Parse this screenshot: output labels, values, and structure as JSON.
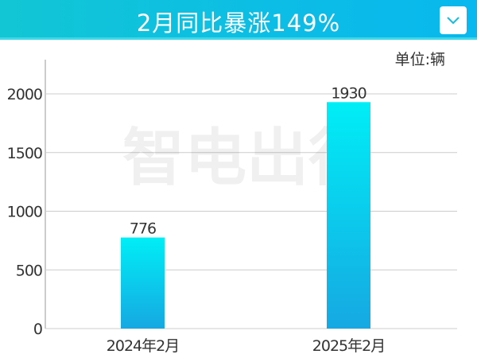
{
  "header": {
    "title": "2月同比暴涨149%",
    "dropdown_icon": "chevron-down-icon"
  },
  "unit_label": "单位:辆",
  "watermark": "智电出行",
  "colors": {
    "bar_top": "#00eef6",
    "bar_bottom": "#16a8e2",
    "header": "#0cbde6"
  },
  "chart_data": {
    "type": "bar",
    "title": "2月同比暴涨149%",
    "categories": [
      "2024年2月",
      "2025年2月"
    ],
    "values": [
      776,
      1930
    ],
    "ylim": [
      0,
      2000
    ],
    "yticks": [
      0,
      500,
      1000,
      1500,
      2000
    ],
    "grid": true,
    "ylabel": "单位:辆"
  }
}
